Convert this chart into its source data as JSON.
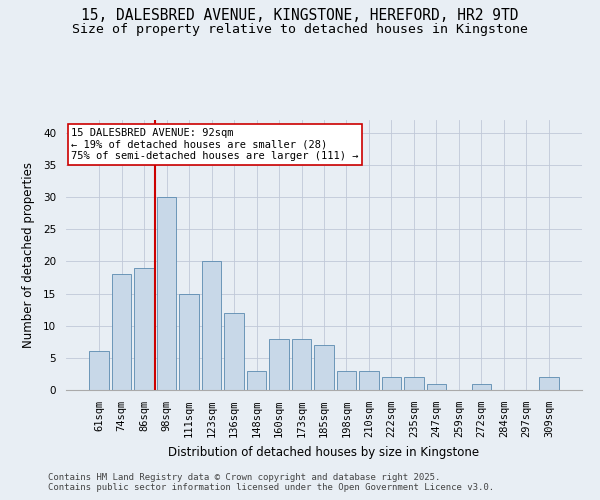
{
  "title_line1": "15, DALESBRED AVENUE, KINGSTONE, HEREFORD, HR2 9TD",
  "title_line2": "Size of property relative to detached houses in Kingstone",
  "xlabel": "Distribution of detached houses by size in Kingstone",
  "ylabel": "Number of detached properties",
  "categories": [
    "61sqm",
    "74sqm",
    "86sqm",
    "98sqm",
    "111sqm",
    "123sqm",
    "136sqm",
    "148sqm",
    "160sqm",
    "173sqm",
    "185sqm",
    "198sqm",
    "210sqm",
    "222sqm",
    "235sqm",
    "247sqm",
    "259sqm",
    "272sqm",
    "284sqm",
    "297sqm",
    "309sqm"
  ],
  "values": [
    6,
    18,
    19,
    30,
    15,
    20,
    12,
    3,
    8,
    8,
    7,
    3,
    3,
    2,
    2,
    1,
    0,
    1,
    0,
    0,
    2
  ],
  "bar_color": "#c8d8e8",
  "bar_edge_color": "#5a8ab0",
  "grid_color": "#c0c8d8",
  "background_color": "#e8eef4",
  "vline_color": "#cc0000",
  "annotation_text": "15 DALESBRED AVENUE: 92sqm\n← 19% of detached houses are smaller (28)\n75% of semi-detached houses are larger (111) →",
  "annotation_box_color": "#ffffff",
  "annotation_box_edge": "#cc0000",
  "ylim": [
    0,
    42
  ],
  "yticks": [
    0,
    5,
    10,
    15,
    20,
    25,
    30,
    35,
    40
  ],
  "footer_line1": "Contains HM Land Registry data © Crown copyright and database right 2025.",
  "footer_line2": "Contains public sector information licensed under the Open Government Licence v3.0.",
  "title_fontsize": 10.5,
  "subtitle_fontsize": 9.5,
  "axis_label_fontsize": 8.5,
  "tick_fontsize": 7.5,
  "annotation_fontsize": 7.5,
  "footer_fontsize": 6.5
}
